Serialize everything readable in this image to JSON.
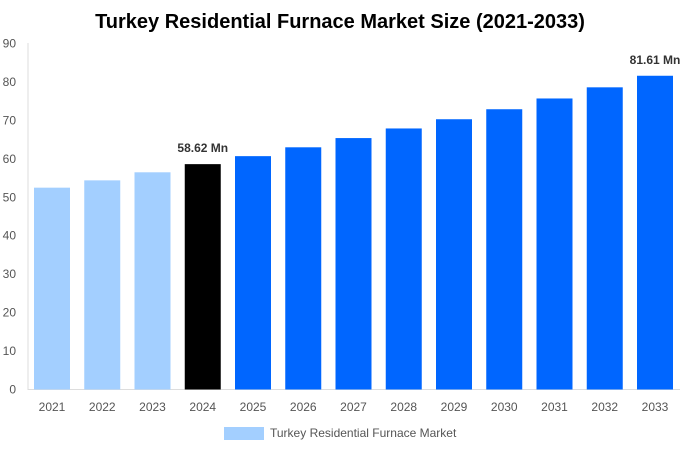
{
  "chart_data": {
    "type": "bar",
    "title": "Turkey Residential Furnace Market Size (2021-2033)",
    "xlabel": "",
    "ylabel": "",
    "ylim": [
      0,
      90
    ],
    "yticks": [
      0,
      10,
      20,
      30,
      40,
      50,
      60,
      70,
      80,
      90
    ],
    "grid": false,
    "legend_position": "bottom",
    "categories": [
      "2021",
      "2022",
      "2023",
      "2024",
      "2025",
      "2026",
      "2027",
      "2028",
      "2029",
      "2030",
      "2031",
      "2032",
      "2033"
    ],
    "series": [
      {
        "name": "Turkey Residential Furnace Market",
        "values": [
          52.5,
          54.4,
          56.5,
          58.62,
          60.7,
          63.0,
          65.4,
          67.9,
          70.3,
          72.9,
          75.7,
          78.6,
          81.61
        ]
      }
    ],
    "bar_colors": [
      "#a3cfff",
      "#a3cfff",
      "#a3cfff",
      "#000000",
      "#0066ff",
      "#0066ff",
      "#0066ff",
      "#0066ff",
      "#0066ff",
      "#0066ff",
      "#0066ff",
      "#0066ff",
      "#0066ff"
    ],
    "legend_color": "#a3cfff",
    "data_labels": [
      {
        "category": "2024",
        "text": "58.62 Mn"
      },
      {
        "category": "2033",
        "text": "81.61 Mn"
      }
    ]
  }
}
